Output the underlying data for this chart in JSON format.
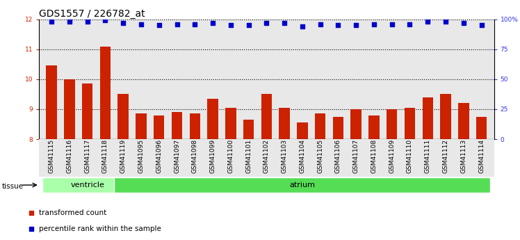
{
  "title": "GDS1557 / 226782_at",
  "categories": [
    "GSM41115",
    "GSM41116",
    "GSM41117",
    "GSM41118",
    "GSM41119",
    "GSM41095",
    "GSM41096",
    "GSM41097",
    "GSM41098",
    "GSM41099",
    "GSM41100",
    "GSM41101",
    "GSM41102",
    "GSM41103",
    "GSM41104",
    "GSM41105",
    "GSM41106",
    "GSM41107",
    "GSM41108",
    "GSM41109",
    "GSM41110",
    "GSM41111",
    "GSM41112",
    "GSM41113",
    "GSM41114"
  ],
  "bar_values": [
    10.45,
    10.0,
    9.85,
    11.08,
    9.5,
    8.85,
    8.78,
    8.9,
    8.85,
    9.35,
    9.05,
    8.65,
    9.5,
    9.05,
    8.55,
    8.85,
    8.75,
    9.0,
    8.78,
    9.0,
    9.05,
    9.4,
    9.5,
    9.2,
    8.75
  ],
  "percentile_values": [
    98,
    98,
    98,
    99,
    97,
    96,
    95,
    96,
    96,
    97,
    95,
    95,
    97,
    97,
    94,
    96,
    95,
    95,
    96,
    96,
    96,
    98,
    98,
    97,
    95
  ],
  "bar_color": "#cc2200",
  "percentile_color": "#0000cc",
  "ylim_left": [
    8,
    12
  ],
  "ylim_right": [
    0,
    100
  ],
  "yticks_left": [
    8,
    9,
    10,
    11,
    12
  ],
  "yticks_right": [
    0,
    25,
    50,
    75,
    100
  ],
  "ytick_labels_right": [
    "0",
    "25",
    "50",
    "75",
    "100%"
  ],
  "tissue_groups": [
    {
      "label": "ventricle",
      "start": 0,
      "end": 4,
      "color": "#aaffaa"
    },
    {
      "label": "atrium",
      "start": 4,
      "end": 24,
      "color": "#55dd55"
    }
  ],
  "tissue_label": "tissue",
  "legend_items": [
    {
      "label": "transformed count",
      "color": "#cc2200",
      "marker": "s"
    },
    {
      "label": "percentile rank within the sample",
      "color": "#0000cc",
      "marker": "s"
    }
  ],
  "grid_color": "#000000",
  "plot_bg_color": "#e8e8e8",
  "title_fontsize": 10,
  "tick_fontsize": 6.5
}
